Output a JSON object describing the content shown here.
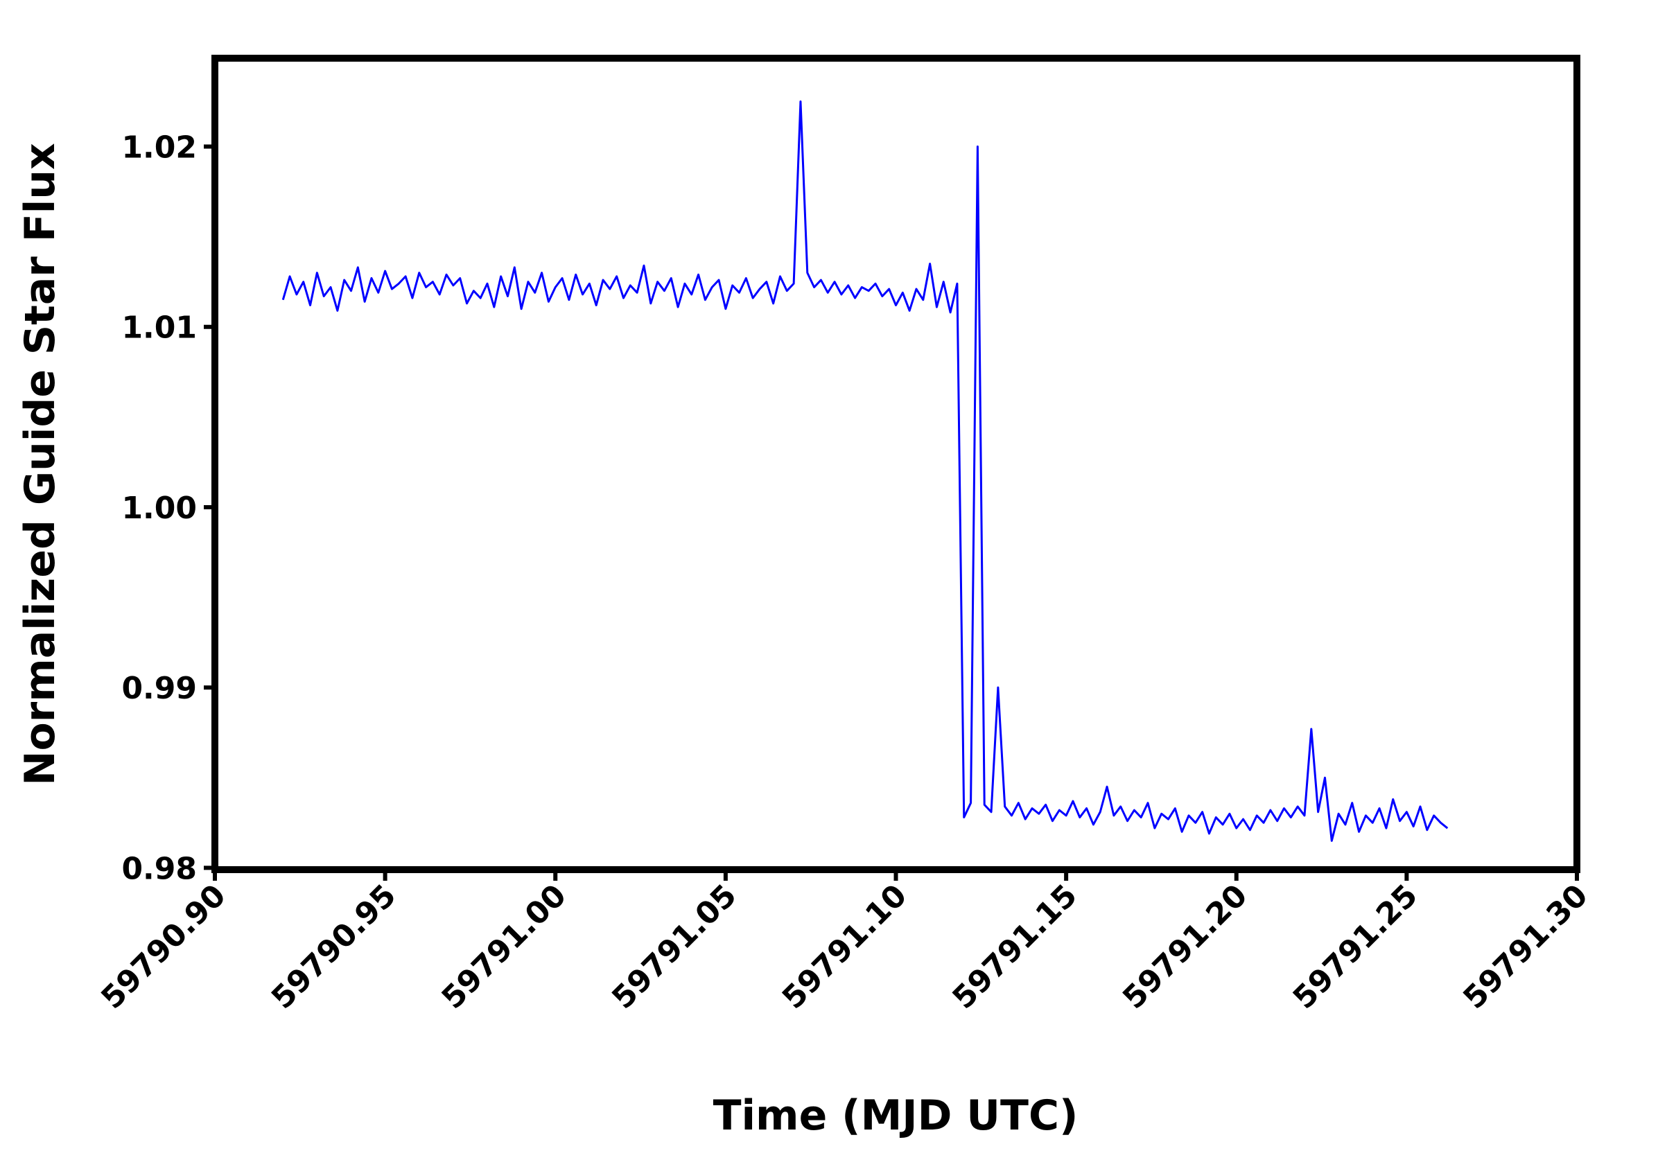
{
  "chart_data": {
    "type": "line",
    "xlabel": "Time (MJD UTC)",
    "ylabel": "Normalized Guide Star Flux",
    "color": "#0000ff",
    "xlim": [
      59790.9,
      59791.3
    ],
    "ylim": [
      0.9799,
      1.0249
    ],
    "xticks": [
      {
        "value": 59790.9,
        "label": "59790.90"
      },
      {
        "value": 59790.95,
        "label": "59790.95"
      },
      {
        "value": 59791,
        "label": "59791.00"
      },
      {
        "value": 59791.05,
        "label": "59791.05"
      },
      {
        "value": 59791.1,
        "label": "59791.10"
      },
      {
        "value": 59791.15,
        "label": "59791.15"
      },
      {
        "value": 59791.2,
        "label": "59791.20"
      },
      {
        "value": 59791.25,
        "label": "59791.25"
      },
      {
        "value": 59791.3,
        "label": "59791.30"
      }
    ],
    "yticks": [
      0.98,
      0.99,
      {
        "value": 1,
        "label": "1.00"
      },
      1.01,
      1.02
    ],
    "grid": false,
    "x": [
      59790.92,
      59790.922,
      59790.924,
      59790.926,
      59790.928,
      59790.93,
      59790.932,
      59790.934,
      59790.936,
      59790.938,
      59790.94,
      59790.942,
      59790.944,
      59790.946,
      59790.948,
      59790.95,
      59790.952,
      59790.954,
      59790.956,
      59790.958,
      59790.96,
      59790.962,
      59790.964,
      59790.966,
      59790.968,
      59790.97,
      59790.972,
      59790.974,
      59790.976,
      59790.978,
      59790.98,
      59790.982,
      59790.984,
      59790.986,
      59790.988,
      59790.99,
      59790.992,
      59790.994,
      59790.996,
      59790.998,
      59791,
      59791.002,
      59791.004,
      59791.006,
      59791.008,
      59791.01,
      59791.012,
      59791.014,
      59791.016,
      59791.018,
      59791.02,
      59791.022,
      59791.024,
      59791.026,
      59791.028,
      59791.03,
      59791.032,
      59791.034,
      59791.036,
      59791.038,
      59791.04,
      59791.042,
      59791.044,
      59791.046,
      59791.048,
      59791.05,
      59791.052,
      59791.054,
      59791.056,
      59791.058,
      59791.06,
      59791.062,
      59791.064,
      59791.066,
      59791.068,
      59791.07,
      59791.072,
      59791.074,
      59791.076,
      59791.078,
      59791.08,
      59791.082,
      59791.084,
      59791.086,
      59791.088,
      59791.09,
      59791.092,
      59791.094,
      59791.096,
      59791.098,
      59791.1,
      59791.102,
      59791.104,
      59791.106,
      59791.108,
      59791.11,
      59791.112,
      59791.114,
      59791.116,
      59791.118,
      59791.12,
      59791.122,
      59791.124,
      59791.126,
      59791.128,
      59791.13,
      59791.132,
      59791.134,
      59791.136,
      59791.138,
      59791.14,
      59791.142,
      59791.144,
      59791.146,
      59791.148,
      59791.15,
      59791.152,
      59791.154,
      59791.156,
      59791.158,
      59791.16,
      59791.162,
      59791.164,
      59791.166,
      59791.168,
      59791.17,
      59791.172,
      59791.174,
      59791.176,
      59791.178,
      59791.18,
      59791.182,
      59791.184,
      59791.186,
      59791.188,
      59791.19,
      59791.192,
      59791.194,
      59791.196,
      59791.198,
      59791.2,
      59791.202,
      59791.204,
      59791.206,
      59791.208,
      59791.21,
      59791.212,
      59791.214,
      59791.216,
      59791.218,
      59791.22,
      59791.222,
      59791.224,
      59791.226,
      59791.228,
      59791.23,
      59791.232,
      59791.234,
      59791.236,
      59791.238,
      59791.24,
      59791.242,
      59791.244,
      59791.246,
      59791.248,
      59791.25,
      59791.252,
      59791.254,
      59791.256,
      59791.258,
      59791.26,
      59791.262
    ],
    "values": [
      1.0115,
      1.0128,
      1.0118,
      1.0125,
      1.0112,
      1.013,
      1.0117,
      1.0122,
      1.0109,
      1.0126,
      1.012,
      1.0133,
      1.0114,
      1.0127,
      1.0119,
      1.0131,
      1.0121,
      1.0124,
      1.0128,
      1.0116,
      1.013,
      1.0122,
      1.0125,
      1.0118,
      1.0129,
      1.0123,
      1.0127,
      1.0113,
      1.012,
      1.0116,
      1.0124,
      1.0111,
      1.0128,
      1.0117,
      1.0133,
      1.011,
      1.0125,
      1.0119,
      1.013,
      1.0114,
      1.0122,
      1.0127,
      1.0115,
      1.0129,
      1.0118,
      1.0124,
      1.0112,
      1.0126,
      1.0121,
      1.0128,
      1.0116,
      1.0123,
      1.0119,
      1.0134,
      1.0113,
      1.0125,
      1.012,
      1.0127,
      1.0111,
      1.0124,
      1.0118,
      1.0129,
      1.0115,
      1.0122,
      1.0126,
      1.011,
      1.0123,
      1.0119,
      1.0127,
      1.0116,
      1.0121,
      1.0125,
      1.0113,
      1.0128,
      1.012,
      1.0124,
      1.0225,
      1.013,
      1.0122,
      1.0126,
      1.0119,
      1.0125,
      1.0118,
      1.0123,
      1.0116,
      1.0122,
      1.012,
      1.0124,
      1.0117,
      1.0121,
      1.0112,
      1.0119,
      1.0109,
      1.0121,
      1.0115,
      1.0135,
      1.0111,
      1.0125,
      1.0108,
      1.0124,
      0.9828,
      0.9836,
      1.02,
      0.9835,
      0.9831,
      0.99,
      0.9834,
      0.9829,
      0.9836,
      0.9827,
      0.9833,
      0.983,
      0.9835,
      0.9826,
      0.9832,
      0.9829,
      0.9837,
      0.9828,
      0.9833,
      0.9824,
      0.9831,
      0.9845,
      0.9829,
      0.9834,
      0.9826,
      0.9832,
      0.9828,
      0.9836,
      0.9822,
      0.983,
      0.9827,
      0.9833,
      0.982,
      0.9829,
      0.9825,
      0.9831,
      0.9819,
      0.9828,
      0.9824,
      0.983,
      0.9822,
      0.9827,
      0.9821,
      0.9829,
      0.9825,
      0.9832,
      0.9826,
      0.9833,
      0.9828,
      0.9834,
      0.9829,
      0.9877,
      0.9831,
      0.985,
      0.9815,
      0.983,
      0.9824,
      0.9836,
      0.982,
      0.9829,
      0.9825,
      0.9833,
      0.9822,
      0.9838,
      0.9826,
      0.9831,
      0.9823,
      0.9834,
      0.9821,
      0.9829,
      0.9825,
      0.9822
    ]
  }
}
